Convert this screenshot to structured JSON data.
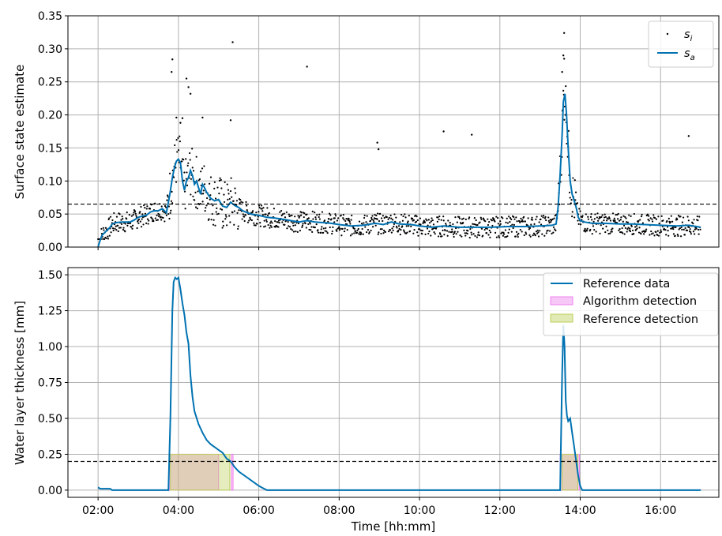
{
  "chart_data": [
    {
      "type": "scatter+line",
      "ylabel": "Surface state estimate",
      "ylim": [
        0,
        0.35
      ],
      "yticks": [
        "0.00",
        "0.05",
        "0.10",
        "0.15",
        "0.20",
        "0.25",
        "0.30",
        "0.35"
      ],
      "yticks_values": [
        0,
        0.05,
        0.1,
        0.15,
        0.2,
        0.25,
        0.3,
        0.35
      ],
      "xlim_hours": [
        1.25,
        17.45
      ],
      "xticks_values": [
        2,
        4,
        6,
        8,
        10,
        12,
        14,
        16
      ],
      "grid": true,
      "threshold": 0.065,
      "legend_placement": "top-right",
      "series": [
        {
          "name": "s_i",
          "legend_label": "s",
          "legend_sub": "i",
          "kind": "scatter",
          "color": "#000000",
          "sample_points": [
            [
              3.85,
              0.284
            ],
            [
              3.83,
              0.265
            ],
            [
              4.2,
              0.255
            ],
            [
              4.25,
              0.242
            ],
            [
              4.3,
              0.232
            ],
            [
              4.6,
              0.196
            ],
            [
              5.35,
              0.31
            ],
            [
              5.3,
              0.192
            ],
            [
              7.2,
              0.273
            ],
            [
              8.95,
              0.158
            ],
            [
              8.98,
              0.148
            ],
            [
              10.6,
              0.175
            ],
            [
              11.3,
              0.17
            ],
            [
              13.6,
              0.324
            ],
            [
              13.58,
              0.29
            ],
            [
              13.6,
              0.285
            ],
            [
              13.55,
              0.265
            ],
            [
              16.7,
              0.168
            ],
            [
              3.95,
              0.196
            ],
            [
              4.05,
              0.188
            ],
            [
              4.1,
              0.195
            ]
          ]
        },
        {
          "name": "s_a",
          "legend_label": "s",
          "legend_sub": "a",
          "kind": "line",
          "color": "#0072B2",
          "points": [
            [
              2.0,
              0.0
            ],
            [
              2.05,
              0.01
            ],
            [
              2.1,
              0.018
            ],
            [
              2.2,
              0.024
            ],
            [
              2.3,
              0.03
            ],
            [
              2.35,
              0.035
            ],
            [
              2.45,
              0.037
            ],
            [
              2.6,
              0.038
            ],
            [
              2.8,
              0.038
            ],
            [
              2.9,
              0.041
            ],
            [
              3.0,
              0.045
            ],
            [
              3.1,
              0.047
            ],
            [
              3.2,
              0.048
            ],
            [
              3.3,
              0.053
            ],
            [
              3.4,
              0.055
            ],
            [
              3.5,
              0.055
            ],
            [
              3.6,
              0.058
            ],
            [
              3.7,
              0.052
            ],
            [
              3.75,
              0.068
            ],
            [
              3.8,
              0.085
            ],
            [
              3.85,
              0.105
            ],
            [
              3.9,
              0.12
            ],
            [
              3.95,
              0.13
            ],
            [
              4.0,
              0.133
            ],
            [
              4.05,
              0.128
            ],
            [
              4.1,
              0.1
            ],
            [
              4.15,
              0.086
            ],
            [
              4.2,
              0.1
            ],
            [
              4.25,
              0.105
            ],
            [
              4.3,
              0.116
            ],
            [
              4.35,
              0.108
            ],
            [
              4.4,
              0.095
            ],
            [
              4.45,
              0.1
            ],
            [
              4.5,
              0.09
            ],
            [
              4.55,
              0.08
            ],
            [
              4.6,
              0.095
            ],
            [
              4.65,
              0.09
            ],
            [
              4.7,
              0.083
            ],
            [
              4.8,
              0.074
            ],
            [
              4.9,
              0.07
            ],
            [
              5.0,
              0.072
            ],
            [
              5.1,
              0.062
            ],
            [
              5.2,
              0.06
            ],
            [
              5.3,
              0.068
            ],
            [
              5.4,
              0.063
            ],
            [
              5.5,
              0.06
            ],
            [
              5.6,
              0.055
            ],
            [
              5.8,
              0.05
            ],
            [
              6.0,
              0.048
            ],
            [
              6.2,
              0.045
            ],
            [
              6.4,
              0.044
            ],
            [
              6.6,
              0.042
            ],
            [
              6.8,
              0.04
            ],
            [
              7.0,
              0.038
            ],
            [
              7.2,
              0.04
            ],
            [
              7.4,
              0.038
            ],
            [
              7.6,
              0.037
            ],
            [
              7.8,
              0.036
            ],
            [
              8.0,
              0.034
            ],
            [
              8.3,
              0.032
            ],
            [
              8.6,
              0.033
            ],
            [
              8.9,
              0.036
            ],
            [
              9.1,
              0.034
            ],
            [
              9.3,
              0.038
            ],
            [
              9.5,
              0.035
            ],
            [
              9.8,
              0.034
            ],
            [
              10.0,
              0.032
            ],
            [
              10.3,
              0.03
            ],
            [
              10.6,
              0.032
            ],
            [
              11.0,
              0.03
            ],
            [
              11.4,
              0.03
            ],
            [
              11.8,
              0.03
            ],
            [
              12.2,
              0.031
            ],
            [
              12.6,
              0.031
            ],
            [
              13.0,
              0.032
            ],
            [
              13.3,
              0.033
            ],
            [
              13.4,
              0.035
            ],
            [
              13.45,
              0.06
            ],
            [
              13.5,
              0.11
            ],
            [
              13.55,
              0.17
            ],
            [
              13.58,
              0.22
            ],
            [
              13.62,
              0.232
            ],
            [
              13.66,
              0.2
            ],
            [
              13.7,
              0.15
            ],
            [
              13.75,
              0.1
            ],
            [
              13.8,
              0.08
            ],
            [
              13.85,
              0.07
            ],
            [
              13.9,
              0.06
            ],
            [
              13.95,
              0.045
            ],
            [
              14.0,
              0.04
            ],
            [
              14.1,
              0.038
            ],
            [
              14.3,
              0.036
            ],
            [
              14.6,
              0.036
            ],
            [
              15.0,
              0.035
            ],
            [
              15.3,
              0.035
            ],
            [
              15.6,
              0.034
            ],
            [
              16.0,
              0.033
            ],
            [
              16.4,
              0.032
            ],
            [
              16.7,
              0.033
            ],
            [
              17.0,
              0.03
            ]
          ]
        }
      ]
    },
    {
      "type": "line+area",
      "ylabel": "Water layer thickness [mm]",
      "xlabel": "Time [hh:mm]",
      "ylim": [
        -0.05,
        1.55
      ],
      "yticks": [
        "0.00",
        "0.25",
        "0.50",
        "0.75",
        "1.00",
        "1.25",
        "1.50"
      ],
      "yticks_values": [
        0,
        0.25,
        0.5,
        0.75,
        1.0,
        1.25,
        1.5
      ],
      "xlim_hours": [
        1.25,
        17.45
      ],
      "xticks": [
        "02:00",
        "04:00",
        "06:00",
        "08:00",
        "10:00",
        "12:00",
        "14:00",
        "16:00"
      ],
      "xticks_values": [
        2,
        4,
        6,
        8,
        10,
        12,
        14,
        16
      ],
      "grid": true,
      "threshold": 0.2,
      "legend_placement": "top-right",
      "series": [
        {
          "name": "Reference data",
          "kind": "line",
          "color": "#0072B2",
          "points": [
            [
              2.0,
              0.02
            ],
            [
              2.05,
              0.01
            ],
            [
              2.1,
              0.01
            ],
            [
              2.2,
              0.01
            ],
            [
              2.3,
              0.01
            ],
            [
              2.35,
              0.0
            ],
            [
              3.75,
              0.0
            ],
            [
              3.8,
              0.5
            ],
            [
              3.85,
              1.25
            ],
            [
              3.88,
              1.45
            ],
            [
              3.92,
              1.48
            ],
            [
              3.96,
              1.47
            ],
            [
              4.0,
              1.48
            ],
            [
              4.05,
              1.4
            ],
            [
              4.1,
              1.3
            ],
            [
              4.15,
              1.22
            ],
            [
              4.2,
              1.1
            ],
            [
              4.25,
              1.02
            ],
            [
              4.3,
              0.8
            ],
            [
              4.35,
              0.65
            ],
            [
              4.4,
              0.55
            ],
            [
              4.5,
              0.46
            ],
            [
              4.6,
              0.4
            ],
            [
              4.7,
              0.35
            ],
            [
              4.8,
              0.32
            ],
            [
              4.9,
              0.3
            ],
            [
              5.0,
              0.28
            ],
            [
              5.1,
              0.26
            ],
            [
              5.2,
              0.22
            ],
            [
              5.3,
              0.2
            ],
            [
              5.4,
              0.16
            ],
            [
              5.5,
              0.13
            ],
            [
              5.6,
              0.11
            ],
            [
              5.7,
              0.09
            ],
            [
              5.8,
              0.07
            ],
            [
              5.9,
              0.05
            ],
            [
              6.0,
              0.03
            ],
            [
              6.1,
              0.015
            ],
            [
              6.2,
              0.0
            ],
            [
              13.5,
              0.0
            ],
            [
              13.55,
              0.8
            ],
            [
              13.58,
              1.15
            ],
            [
              13.61,
              1.0
            ],
            [
              13.64,
              0.62
            ],
            [
              13.67,
              0.52
            ],
            [
              13.7,
              0.48
            ],
            [
              13.75,
              0.5
            ],
            [
              13.8,
              0.4
            ],
            [
              13.85,
              0.3
            ],
            [
              13.9,
              0.2
            ],
            [
              13.95,
              0.1
            ],
            [
              14.0,
              0.03
            ],
            [
              14.05,
              0.0
            ],
            [
              17.0,
              0.0
            ]
          ]
        },
        {
          "name": "Algorithm detection",
          "kind": "span",
          "color": "#EE82EE",
          "spans": [
            [
              3.77,
              5.0
            ],
            [
              5.32,
              5.36
            ],
            [
              13.5,
              13.98
            ]
          ],
          "height": 0.25
        },
        {
          "name": "Reference detection",
          "kind": "span",
          "color": "#BDCF5A",
          "spans": [
            [
              3.8,
              5.28
            ],
            [
              13.55,
              13.94
            ]
          ],
          "height": 0.25
        }
      ]
    }
  ]
}
